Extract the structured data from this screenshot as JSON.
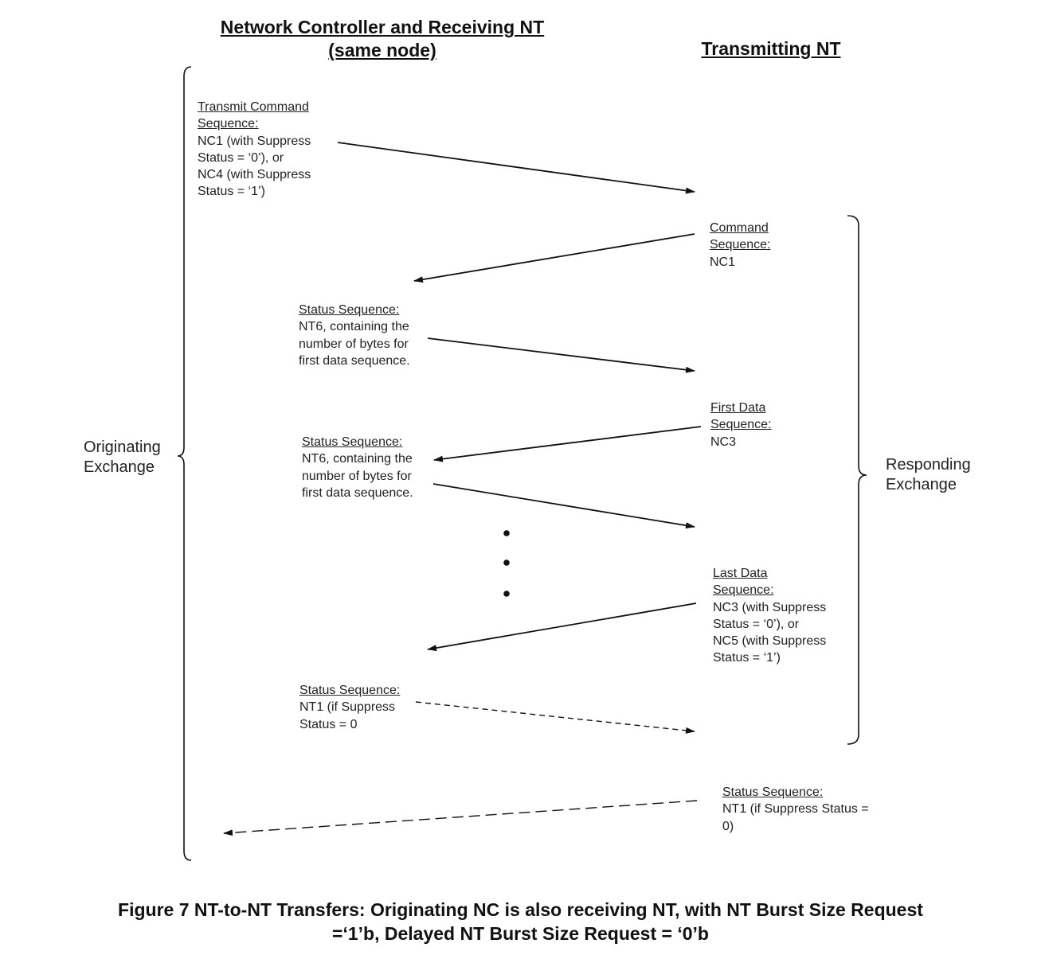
{
  "headers": {
    "left_line1": "Network Controller and Receiving NT",
    "left_line2": "(same node)",
    "right": "Transmitting NT"
  },
  "braces": {
    "left": [
      "Originating",
      "Exchange"
    ],
    "right": [
      "Responding",
      "Exchange"
    ]
  },
  "labels": {
    "transmit_cmd": {
      "title": [
        "Transmit Command",
        "Sequence:"
      ],
      "body": [
        "NC1 (with Suppress",
        "Status = ‘0’), or",
        "NC4 (with Suppress",
        "Status = ‘1’)"
      ]
    },
    "command_seq": {
      "title": [
        "Command",
        "Sequence:"
      ],
      "body": [
        "NC1"
      ]
    },
    "status_seq_1": {
      "title": [
        "Status Sequence:"
      ],
      "body": [
        "NT6, containing the",
        "number of bytes for",
        "first data sequence."
      ]
    },
    "first_data": {
      "title": [
        "First Data",
        "Sequence:"
      ],
      "body": [
        "NC3"
      ]
    },
    "status_seq_2": {
      "title": [
        "Status Sequence:"
      ],
      "body": [
        "NT6, containing the",
        "number of bytes for",
        "first data sequence."
      ]
    },
    "last_data": {
      "title": [
        "Last Data",
        "Sequence:"
      ],
      "body": [
        "NC3 (with Suppress",
        "Status = ‘0’), or",
        "NC5 (with Suppress",
        "Status = ‘1’)"
      ]
    },
    "status_seq_3": {
      "title": [
        "Status Sequence:"
      ],
      "body": [
        "NT1 (if Suppress",
        "Status = 0"
      ]
    },
    "status_seq_4": {
      "title": [
        "Status Sequence:"
      ],
      "body": [
        "NT1 (if Suppress Status =",
        "0)"
      ]
    }
  },
  "caption": [
    "Figure 7 NT-to-NT Transfers: Originating NC is also receiving NT, with NT Burst Size Request",
    "=‘1’b, Delayed NT Burst Size Request = ‘0’b"
  ],
  "colors": {
    "ink": "#111111",
    "text": "#222222",
    "background": "#ffffff"
  }
}
